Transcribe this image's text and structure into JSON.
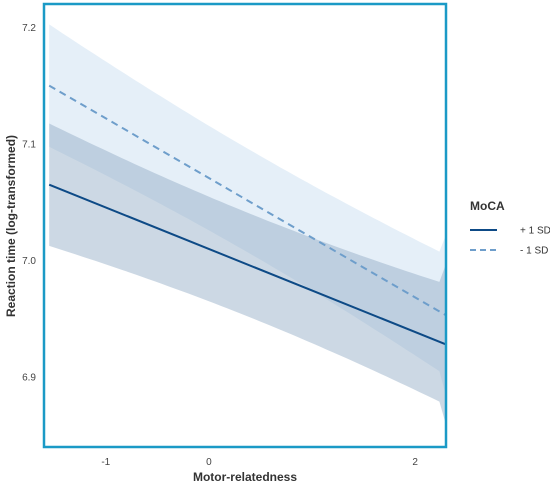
{
  "chart_data": {
    "type": "line",
    "xlabel": "Motor-relatedness",
    "ylabel": "Reaction time (log-transformed)",
    "xlim": [
      -1.6,
      2.3
    ],
    "ylim": [
      6.84,
      7.22
    ],
    "xticks": [
      "-1",
      "0",
      "2"
    ],
    "xtick_values": [
      -1,
      0,
      2
    ],
    "yticks": [
      "6.9",
      "7.0",
      "7.1",
      "7.2"
    ],
    "ytick_values": [
      6.9,
      7.0,
      7.1,
      7.2
    ],
    "grid": false,
    "legend": {
      "title": "MoCA",
      "position": "right"
    },
    "series": [
      {
        "name": "+ 1 SD",
        "style": "solid",
        "color": "#0d4a86",
        "band_color": "#8fa9c4",
        "x": [
          -1.55,
          2.3
        ],
        "y": [
          7.065,
          6.928
        ],
        "ci_lower": [
          7.012,
          6.858
        ],
        "ci_upper": [
          7.117,
          6.996
        ]
      },
      {
        "name": "- 1 SD",
        "style": "dashed",
        "color": "#6e9ecb",
        "band_color": "#c6dcf0",
        "x": [
          -1.55,
          2.3
        ],
        "y": [
          7.15,
          6.953
        ],
        "ci_lower": [
          7.098,
          6.882
        ],
        "ci_upper": [
          7.203,
          7.02
        ]
      }
    ],
    "colors": {
      "frame": "#1b9ac6"
    }
  }
}
